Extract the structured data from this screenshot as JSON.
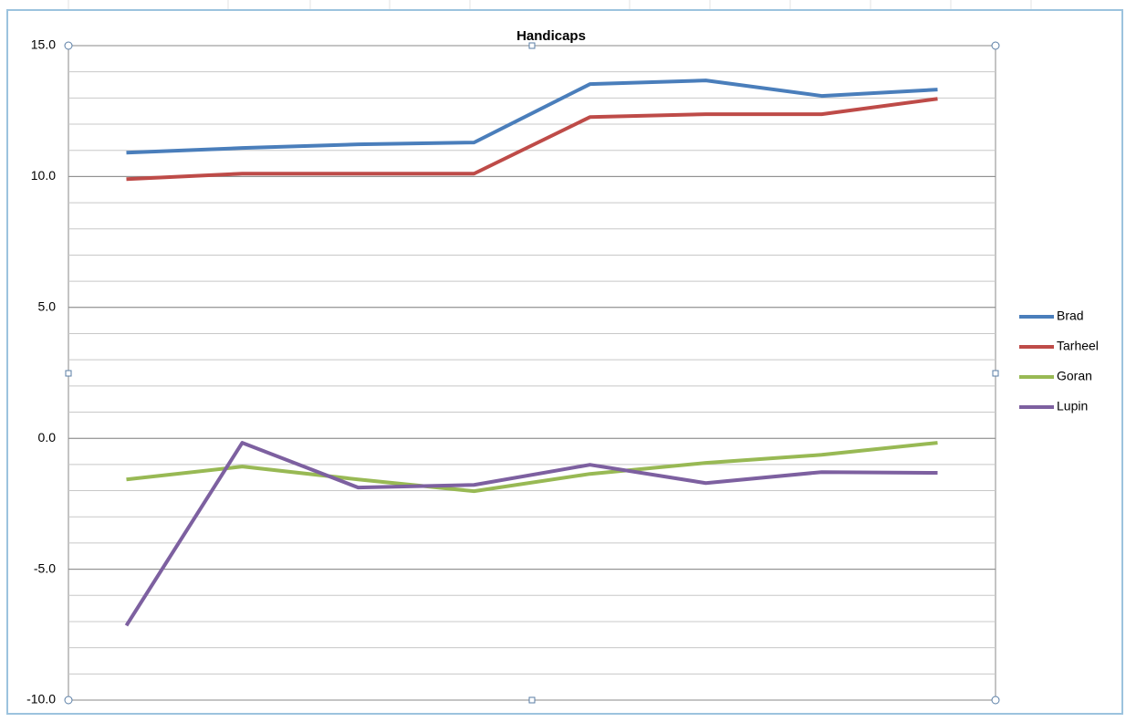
{
  "chart_data": {
    "type": "line",
    "title": "Handicaps",
    "categories": [
      null,
      null,
      null,
      null,
      null,
      null,
      null,
      null
    ],
    "series": [
      {
        "name": "Brad",
        "color": "#4a7ebb",
        "values": [
          10.91,
          11.09,
          11.23,
          11.3,
          13.53,
          13.67,
          13.08,
          13.32
        ]
      },
      {
        "name": "Tarheel",
        "color": "#be4b48",
        "values": [
          9.9,
          10.11,
          10.11,
          10.11,
          12.27,
          12.38,
          12.38,
          12.97
        ]
      },
      {
        "name": "Goran",
        "color": "#98b954",
        "values": [
          -1.57,
          -1.08,
          -1.57,
          -2.02,
          -1.36,
          -0.94,
          -0.63,
          -0.17
        ]
      },
      {
        "name": "Lupin",
        "color": "#7d60a0",
        "values": [
          -7.15,
          -0.17,
          -1.88,
          -1.78,
          -1.01,
          -1.71,
          -1.29,
          -1.32
        ]
      }
    ],
    "ylim": [
      -10,
      15
    ],
    "yticks": [
      {
        "value": -10,
        "label": "-10.0"
      },
      {
        "value": -5,
        "label": "-5.0"
      },
      {
        "value": 0,
        "label": "0.0"
      },
      {
        "value": 5,
        "label": "5.0"
      },
      {
        "value": 10,
        "label": "10.0"
      },
      {
        "value": 15,
        "label": "15.0"
      }
    ],
    "minor_yticks": [
      -10,
      -9,
      -8,
      -7,
      -6,
      -5,
      -4,
      -3,
      -2,
      -1,
      0,
      1,
      2,
      3,
      4,
      5,
      6,
      7,
      8,
      9,
      10,
      11,
      12,
      13,
      14,
      15
    ],
    "grid": true,
    "legend": "right"
  }
}
